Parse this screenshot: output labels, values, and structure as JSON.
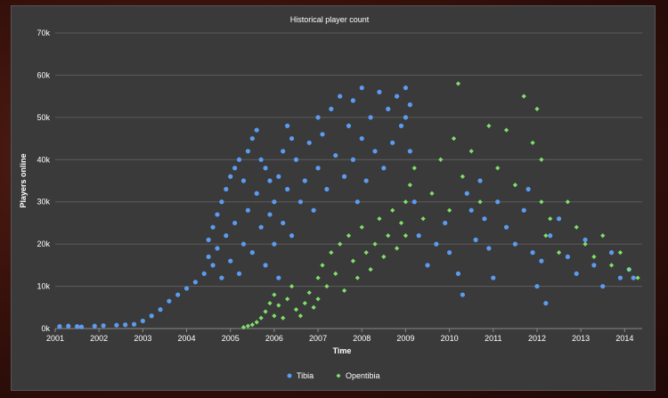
{
  "chart_data": {
    "type": "scatter",
    "title": "Historical player count",
    "xlabel": "Time",
    "ylabel": "Players online",
    "xlim": [
      2001,
      2014.4
    ],
    "ylim": [
      0,
      70000
    ],
    "x_ticks": [
      "2001",
      "2002",
      "2003",
      "2004",
      "2005",
      "2006",
      "2007",
      "2008",
      "2009",
      "2010",
      "2011",
      "2012",
      "2013",
      "2014"
    ],
    "y_ticks": [
      "0k",
      "10k",
      "20k",
      "30k",
      "40k",
      "50k",
      "60k",
      "70k"
    ],
    "grid": true,
    "legend_position": "bottom",
    "series": [
      {
        "name": "Tibia",
        "color": "#5b9bf0",
        "points": [
          [
            2001.1,
            500
          ],
          [
            2001.3,
            600
          ],
          [
            2001.5,
            500
          ],
          [
            2001.6,
            400
          ],
          [
            2001.9,
            600
          ],
          [
            2002.1,
            700
          ],
          [
            2002.4,
            800
          ],
          [
            2002.6,
            900
          ],
          [
            2002.8,
            1000
          ],
          [
            2003.0,
            1800
          ],
          [
            2003.2,
            3000
          ],
          [
            2003.4,
            4500
          ],
          [
            2003.6,
            6500
          ],
          [
            2003.8,
            8000
          ],
          [
            2004.0,
            9500
          ],
          [
            2004.2,
            11000
          ],
          [
            2004.4,
            13000
          ],
          [
            2004.5,
            17000
          ],
          [
            2004.5,
            21000
          ],
          [
            2004.6,
            24000
          ],
          [
            2004.6,
            15000
          ],
          [
            2004.7,
            27000
          ],
          [
            2004.7,
            19000
          ],
          [
            2004.8,
            30000
          ],
          [
            2004.8,
            12000
          ],
          [
            2004.9,
            33000
          ],
          [
            2004.9,
            22000
          ],
          [
            2005.0,
            36000
          ],
          [
            2005.0,
            16000
          ],
          [
            2005.1,
            38000
          ],
          [
            2005.1,
            25000
          ],
          [
            2005.2,
            40000
          ],
          [
            2005.2,
            13000
          ],
          [
            2005.3,
            35000
          ],
          [
            2005.3,
            20000
          ],
          [
            2005.4,
            42000
          ],
          [
            2005.4,
            28000
          ],
          [
            2005.5,
            45000
          ],
          [
            2005.5,
            18000
          ],
          [
            2005.6,
            47000
          ],
          [
            2005.6,
            32000
          ],
          [
            2005.7,
            40000
          ],
          [
            2005.7,
            24000
          ],
          [
            2005.8,
            38000
          ],
          [
            2005.8,
            15000
          ],
          [
            2005.9,
            35000
          ],
          [
            2005.9,
            27000
          ],
          [
            2006.0,
            30000
          ],
          [
            2006.0,
            20000
          ],
          [
            2006.1,
            36000
          ],
          [
            2006.1,
            12000
          ],
          [
            2006.2,
            42000
          ],
          [
            2006.2,
            25000
          ],
          [
            2006.3,
            48000
          ],
          [
            2006.3,
            33000
          ],
          [
            2006.4,
            45000
          ],
          [
            2006.4,
            22000
          ],
          [
            2006.5,
            40000
          ],
          [
            2006.6,
            30000
          ],
          [
            2006.7,
            35000
          ],
          [
            2006.8,
            44000
          ],
          [
            2006.9,
            28000
          ],
          [
            2007.0,
            50000
          ],
          [
            2007.0,
            38000
          ],
          [
            2007.1,
            46000
          ],
          [
            2007.2,
            33000
          ],
          [
            2007.3,
            52000
          ],
          [
            2007.4,
            41000
          ],
          [
            2007.5,
            55000
          ],
          [
            2007.6,
            36000
          ],
          [
            2007.7,
            48000
          ],
          [
            2007.8,
            54000
          ],
          [
            2007.8,
            40000
          ],
          [
            2007.9,
            30000
          ],
          [
            2008.0,
            57000
          ],
          [
            2008.0,
            45000
          ],
          [
            2008.1,
            35000
          ],
          [
            2008.2,
            50000
          ],
          [
            2008.3,
            42000
          ],
          [
            2008.4,
            56000
          ],
          [
            2008.5,
            38000
          ],
          [
            2008.6,
            52000
          ],
          [
            2008.7,
            44000
          ],
          [
            2008.8,
            55000
          ],
          [
            2008.9,
            48000
          ],
          [
            2009.0,
            57000
          ],
          [
            2009.0,
            50000
          ],
          [
            2009.1,
            42000
          ],
          [
            2009.1,
            53000
          ],
          [
            2009.2,
            30000
          ],
          [
            2009.3,
            22000
          ],
          [
            2009.5,
            15000
          ],
          [
            2009.7,
            20000
          ],
          [
            2009.9,
            25000
          ],
          [
            2010.0,
            18000
          ],
          [
            2010.2,
            13000
          ],
          [
            2010.3,
            8000
          ],
          [
            2010.4,
            32000
          ],
          [
            2010.5,
            28000
          ],
          [
            2010.6,
            21000
          ],
          [
            2010.7,
            35000
          ],
          [
            2010.8,
            26000
          ],
          [
            2010.9,
            19000
          ],
          [
            2011.0,
            12000
          ],
          [
            2011.1,
            30000
          ],
          [
            2011.3,
            24000
          ],
          [
            2011.5,
            20000
          ],
          [
            2011.7,
            28000
          ],
          [
            2011.8,
            33000
          ],
          [
            2011.9,
            18000
          ],
          [
            2012.0,
            10000
          ],
          [
            2012.1,
            16000
          ],
          [
            2012.2,
            6000
          ],
          [
            2012.3,
            22000
          ],
          [
            2012.5,
            26000
          ],
          [
            2012.7,
            17000
          ],
          [
            2012.9,
            13000
          ],
          [
            2013.1,
            21000
          ],
          [
            2013.3,
            15000
          ],
          [
            2013.5,
            10000
          ],
          [
            2013.7,
            18000
          ],
          [
            2013.9,
            12000
          ],
          [
            2014.1,
            14000
          ],
          [
            2014.2,
            12000
          ]
        ]
      },
      {
        "name": "Opentibia",
        "color": "#7fe06a",
        "points": [
          [
            2005.3,
            300
          ],
          [
            2005.4,
            600
          ],
          [
            2005.5,
            900
          ],
          [
            2005.6,
            1500
          ],
          [
            2005.7,
            2500
          ],
          [
            2005.8,
            4000
          ],
          [
            2005.9,
            6000
          ],
          [
            2006.0,
            8000
          ],
          [
            2006.0,
            3000
          ],
          [
            2006.1,
            5500
          ],
          [
            2006.2,
            2500
          ],
          [
            2006.3,
            7000
          ],
          [
            2006.4,
            10000
          ],
          [
            2006.5,
            4500
          ],
          [
            2006.6,
            3000
          ],
          [
            2006.7,
            6000
          ],
          [
            2006.8,
            8500
          ],
          [
            2006.9,
            5000
          ],
          [
            2007.0,
            12000
          ],
          [
            2007.0,
            7000
          ],
          [
            2007.1,
            15000
          ],
          [
            2007.2,
            10000
          ],
          [
            2007.3,
            18000
          ],
          [
            2007.4,
            13000
          ],
          [
            2007.5,
            20000
          ],
          [
            2007.6,
            9000
          ],
          [
            2007.7,
            22000
          ],
          [
            2007.8,
            16000
          ],
          [
            2007.9,
            12000
          ],
          [
            2008.0,
            24000
          ],
          [
            2008.1,
            18000
          ],
          [
            2008.2,
            14000
          ],
          [
            2008.3,
            20000
          ],
          [
            2008.4,
            26000
          ],
          [
            2008.5,
            17000
          ],
          [
            2008.6,
            22000
          ],
          [
            2008.7,
            28000
          ],
          [
            2008.8,
            19000
          ],
          [
            2008.9,
            25000
          ],
          [
            2009.0,
            30000
          ],
          [
            2009.0,
            22000
          ],
          [
            2009.1,
            34000
          ],
          [
            2009.2,
            38000
          ],
          [
            2009.4,
            26000
          ],
          [
            2009.6,
            32000
          ],
          [
            2009.8,
            40000
          ],
          [
            2010.0,
            28000
          ],
          [
            2010.1,
            45000
          ],
          [
            2010.2,
            58000
          ],
          [
            2010.3,
            36000
          ],
          [
            2010.5,
            42000
          ],
          [
            2010.7,
            30000
          ],
          [
            2010.9,
            48000
          ],
          [
            2011.1,
            38000
          ],
          [
            2011.3,
            47000
          ],
          [
            2011.5,
            34000
          ],
          [
            2011.7,
            55000
          ],
          [
            2011.9,
            44000
          ],
          [
            2012.0,
            52000
          ],
          [
            2012.1,
            40000
          ],
          [
            2012.1,
            30000
          ],
          [
            2012.2,
            22000
          ],
          [
            2012.3,
            26000
          ],
          [
            2012.5,
            18000
          ],
          [
            2012.7,
            30000
          ],
          [
            2012.9,
            24000
          ],
          [
            2013.1,
            20000
          ],
          [
            2013.3,
            17000
          ],
          [
            2013.5,
            22000
          ],
          [
            2013.7,
            15000
          ],
          [
            2013.9,
            18000
          ],
          [
            2014.1,
            14000
          ],
          [
            2014.3,
            12000
          ]
        ]
      }
    ]
  }
}
